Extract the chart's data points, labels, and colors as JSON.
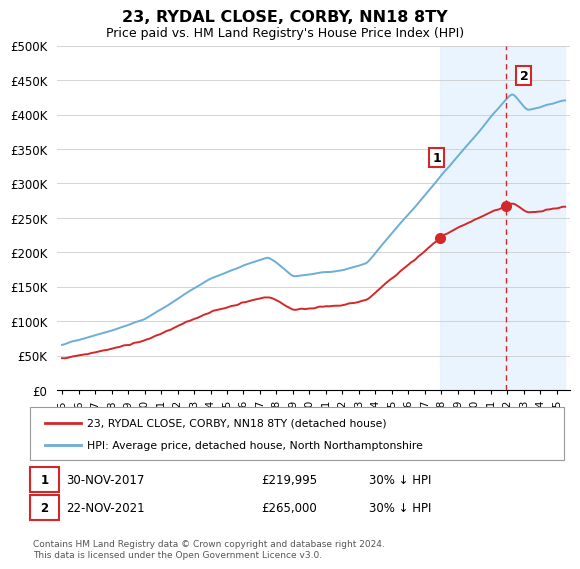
{
  "title": "23, RYDAL CLOSE, CORBY, NN18 8TY",
  "subtitle": "Price paid vs. HM Land Registry's House Price Index (HPI)",
  "ylim": [
    0,
    500000
  ],
  "yticks": [
    0,
    50000,
    100000,
    150000,
    200000,
    250000,
    300000,
    350000,
    400000,
    450000,
    500000
  ],
  "ytick_labels": [
    "£0",
    "£50K",
    "£100K",
    "£150K",
    "£200K",
    "£250K",
    "£300K",
    "£350K",
    "£400K",
    "£450K",
    "£500K"
  ],
  "legend_line1": "23, RYDAL CLOSE, CORBY, NN18 8TY (detached house)",
  "legend_line2": "HPI: Average price, detached house, North Northamptonshire",
  "sale1_date": "30-NOV-2017",
  "sale1_price": "£219,995",
  "sale1_hpi": "30% ↓ HPI",
  "sale2_date": "22-NOV-2021",
  "sale2_price": "£265,000",
  "sale2_hpi": "30% ↓ HPI",
  "footnote": "Contains HM Land Registry data © Crown copyright and database right 2024.\nThis data is licensed under the Open Government Licence v3.0.",
  "hpi_color": "#6baed6",
  "price_color": "#d62728",
  "shade_color": "#ddeeff",
  "sale1_year": 2017.917,
  "sale2_year": 2021.9,
  "sale1_price_val": 219995,
  "sale2_price_val": 265000,
  "vline_color": "#d62728",
  "background_color": "#ffffff",
  "grid_color": "#cccccc",
  "xstart": 1995,
  "xend": 2025,
  "xlim_left": 1994.7,
  "xlim_right": 2025.8
}
